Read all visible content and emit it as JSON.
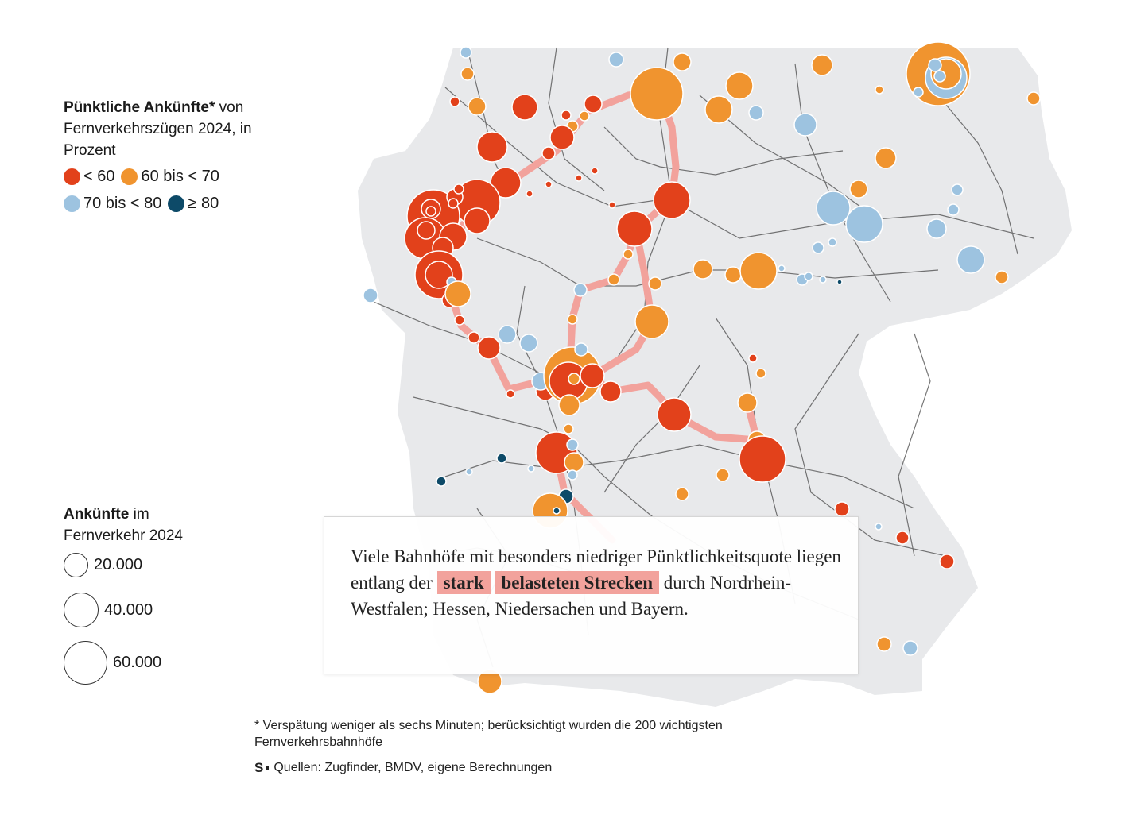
{
  "legend": {
    "title_bold": "Pünktliche Ankünfte*",
    "title_rest_1": " von",
    "title_line_2": "Fernverkehrszügen 2024, in",
    "title_line_3": "Prozent",
    "categories": [
      {
        "label": "< 60",
        "color": "#e2411b"
      },
      {
        "label": "60 bis < 70",
        "color": "#f0942f"
      },
      {
        "label": "70 bis < 80",
        "color": "#9dc3e0"
      },
      {
        "label": "≥ 80",
        "color": "#0d4a68"
      }
    ]
  },
  "size_legend": {
    "title_bold": "Ankünfte",
    "title_rest": " im",
    "title_line_2": "Fernverkehr 2024",
    "items": [
      {
        "label": "20.000",
        "value": 20000
      },
      {
        "label": "40.000",
        "value": 40000
      },
      {
        "label": "60.000",
        "value": 60000
      }
    ]
  },
  "callout": {
    "text_1": "Viele Bahnhöfe mit besonders niedriger Pünktlichkeitsquote liegen entlang der ",
    "highlight_1": "stark",
    "highlight_2": "belasteten Strecken",
    "text_2": " durch Nordrhein-Westfalen; Hessen, Niedersachen und Bayern."
  },
  "footnote": "* Verspätung weniger als sechs Minuten; berücksichtigt wurden die 200 wichtigsten Fernverkehrsbahnhöfe",
  "sources": {
    "logo": "S",
    "text": "Quellen: Zugfinder, BMDV, eigene Berechnungen"
  },
  "colors": {
    "land": "#e8e9eb",
    "highlight_route": "#f2a29c",
    "rail_line": "#4a4a4a"
  }
}
